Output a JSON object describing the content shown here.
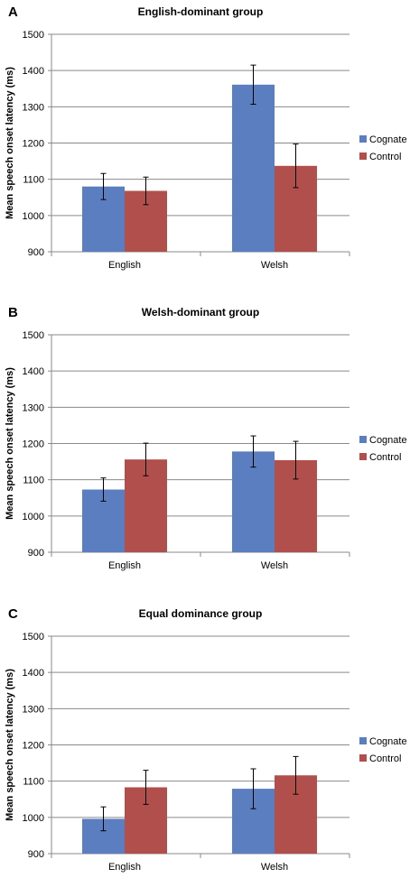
{
  "legend_colors": {
    "Cognate": "#5b7ec0",
    "Control": "#b04f4c"
  },
  "chart_data": [
    {
      "type": "bar",
      "panel_label": "A",
      "title": "English-dominant group",
      "ylabel": "Mean speech onset latency (ms)",
      "xlabel": "",
      "ylim": [
        900,
        1500
      ],
      "yticks": [
        "900",
        "1000",
        "1100",
        "1200",
        "1300",
        "1400",
        "1500"
      ],
      "categories": [
        "English",
        "Welsh"
      ],
      "grid": true,
      "legend_position": "right",
      "series": [
        {
          "name": "Cognate",
          "color": "#5b7ec0",
          "values": [
            1080,
            1361
          ],
          "errors": [
            36,
            54
          ]
        },
        {
          "name": "Control",
          "color": "#b04f4c",
          "values": [
            1068,
            1137
          ],
          "errors": [
            38,
            60
          ]
        }
      ]
    },
    {
      "type": "bar",
      "panel_label": "B",
      "title": "Welsh-dominant group",
      "ylabel": "Mean speech onset latency (ms)",
      "xlabel": "",
      "ylim": [
        900,
        1500
      ],
      "yticks": [
        "900",
        "1000",
        "1100",
        "1200",
        "1300",
        "1400",
        "1500"
      ],
      "categories": [
        "English",
        "Welsh"
      ],
      "grid": true,
      "legend_position": "right",
      "series": [
        {
          "name": "Cognate",
          "color": "#5b7ec0",
          "values": [
            1073,
            1178
          ],
          "errors": [
            32,
            43
          ]
        },
        {
          "name": "Control",
          "color": "#b04f4c",
          "values": [
            1156,
            1154
          ],
          "errors": [
            45,
            52
          ]
        }
      ]
    },
    {
      "type": "bar",
      "panel_label": "C",
      "title": "Equal dominance group",
      "ylabel": "Mean speech onset latency (ms)",
      "xlabel": "",
      "ylim": [
        900,
        1500
      ],
      "yticks": [
        "900",
        "1000",
        "1100",
        "1200",
        "1300",
        "1400",
        "1500"
      ],
      "categories": [
        "English",
        "Welsh"
      ],
      "grid": true,
      "legend_position": "right",
      "series": [
        {
          "name": "Cognate",
          "color": "#5b7ec0",
          "values": [
            996,
            1079
          ],
          "errors": [
            33,
            55
          ]
        },
        {
          "name": "Control",
          "color": "#b04f4c",
          "values": [
            1083,
            1116
          ],
          "errors": [
            47,
            52
          ]
        }
      ]
    }
  ]
}
